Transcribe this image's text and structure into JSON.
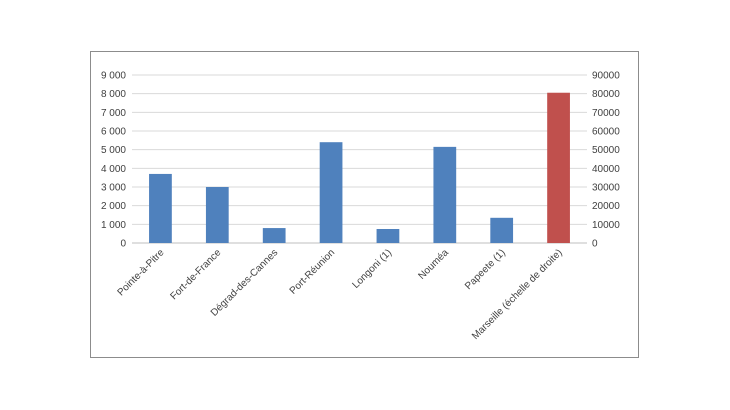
{
  "chart_data": {
    "type": "bar",
    "title": "",
    "xlabel": "",
    "ylabel": "",
    "categories": [
      "Pointe-à-Pitre",
      "Fort-de-France",
      "Dégrad-des-Cannes",
      "Port-Réunion",
      "Longoni (1)",
      "Nouméa",
      "Papeete (1)",
      "Marseille (échelle de droite)"
    ],
    "series": [
      {
        "axis": "left",
        "color": "#4f81bd",
        "values": [
          3700,
          3000,
          800,
          5400,
          750,
          5150,
          1350,
          null
        ]
      },
      {
        "axis": "right",
        "color": "#c0504d",
        "values": [
          null,
          null,
          null,
          null,
          null,
          null,
          null,
          80500
        ]
      }
    ],
    "ylim": [
      0,
      9000
    ],
    "y2lim": [
      0,
      90000
    ],
    "y_ticks": [
      "0",
      "1 000",
      "2 000",
      "3 000",
      "4 000",
      "5 000",
      "6 000",
      "7 000",
      "8 000",
      "9 000"
    ],
    "y2_ticks": [
      "0",
      "10000",
      "20000",
      "30000",
      "40000",
      "50000",
      "60000",
      "70000",
      "80000",
      "90000"
    ],
    "grid": true,
    "grid_color": "#d9d9d9",
    "legend": "none"
  }
}
